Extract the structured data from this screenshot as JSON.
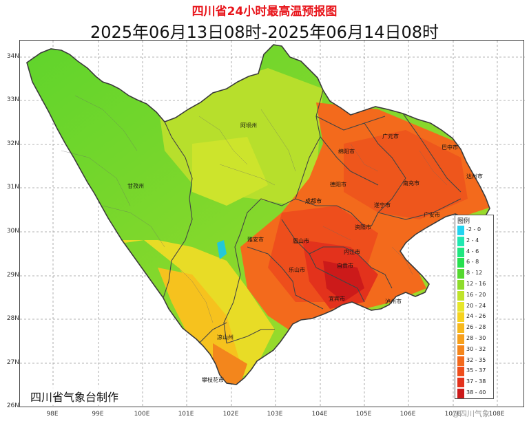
{
  "title": "四川省24小时最高温预报图",
  "subtitle": "2025年06月13日08时-2025年06月14日08时",
  "x_ticks": [
    "98E",
    "99E",
    "100E",
    "101E",
    "102E",
    "103E",
    "104E",
    "105E",
    "106E",
    "107E",
    "108E"
  ],
  "y_ticks": [
    "34N",
    "33N",
    "32N",
    "31N",
    "30N",
    "29N",
    "28N",
    "27N",
    "26N"
  ],
  "legend": {
    "title": "图例",
    "items": [
      {
        "label": "-2 - 0",
        "color": "#22d3f0"
      },
      {
        "label": "2 - 4",
        "color": "#1fe8b0"
      },
      {
        "label": "4 - 6",
        "color": "#1fe680"
      },
      {
        "label": "6 - 8",
        "color": "#27e050"
      },
      {
        "label": "8 - 12",
        "color": "#55d830"
      },
      {
        "label": "12 - 16",
        "color": "#8edc2c"
      },
      {
        "label": "16 - 20",
        "color": "#bfe32a"
      },
      {
        "label": "20 - 24",
        "color": "#e6e62a"
      },
      {
        "label": "24 - 26",
        "color": "#f6d21e"
      },
      {
        "label": "26 - 28",
        "color": "#f7b81c"
      },
      {
        "label": "28 - 30",
        "color": "#f7a01c"
      },
      {
        "label": "30 - 32",
        "color": "#f5861c"
      },
      {
        "label": "32 - 35",
        "color": "#f36a1c"
      },
      {
        "label": "35 - 37",
        "color": "#ee4e1c"
      },
      {
        "label": "37 - 38",
        "color": "#e3321c"
      },
      {
        "label": "38 - 40",
        "color": "#cc1a1a"
      }
    ]
  },
  "cities": [
    {
      "name": "阿坝州"
    },
    {
      "name": "甘孜州"
    },
    {
      "name": "广元市"
    },
    {
      "name": "巴中市"
    },
    {
      "name": "绵阳市"
    },
    {
      "name": "南充市"
    },
    {
      "name": "达州市"
    },
    {
      "name": "德阳市"
    },
    {
      "name": "成都市"
    },
    {
      "name": "遂宁市"
    },
    {
      "name": "广安市"
    },
    {
      "name": "资阳市"
    },
    {
      "name": "雅安市"
    },
    {
      "name": "眉山市"
    },
    {
      "name": "内江市"
    },
    {
      "name": "乐山市"
    },
    {
      "name": "自贡市"
    },
    {
      "name": "宜宾市"
    },
    {
      "name": "泸州市"
    },
    {
      "name": "凉山州"
    },
    {
      "name": "攀枝花市"
    }
  ],
  "credit": "四川省气象台制作",
  "watermark": "@四川气象"
}
